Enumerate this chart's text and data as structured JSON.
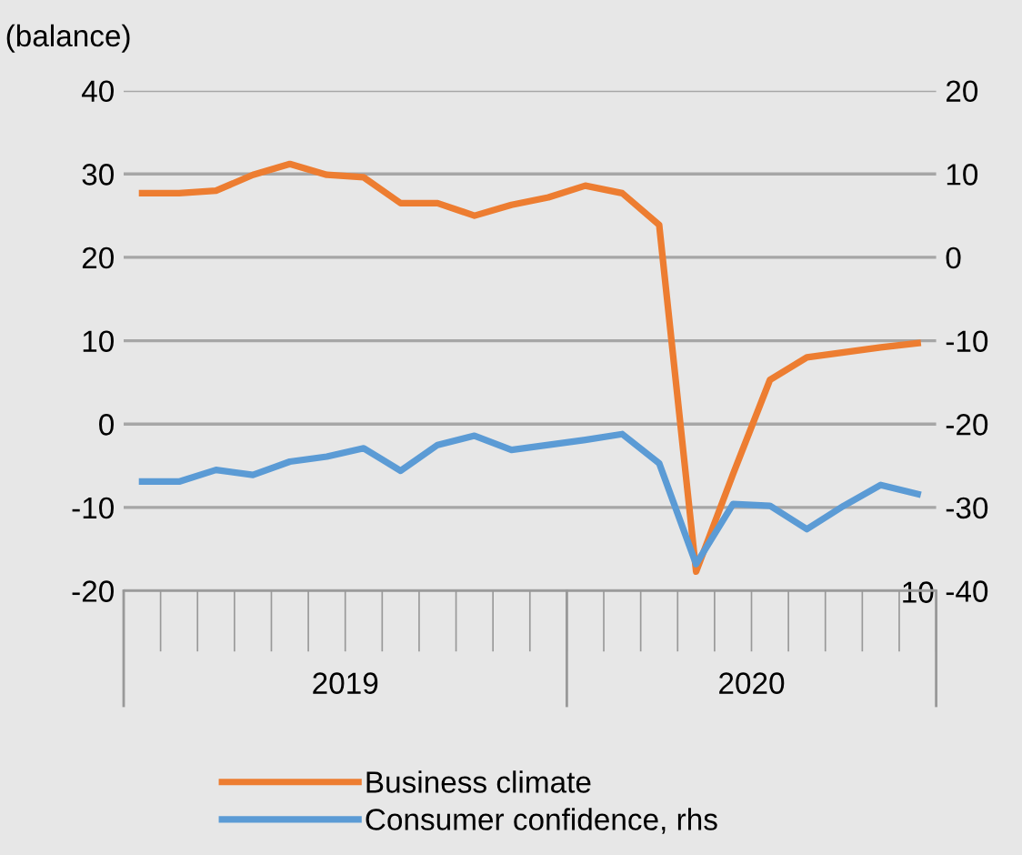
{
  "chart_data": {
    "type": "line",
    "ylabel": "(balance)",
    "categories": [
      null,
      null,
      null,
      null,
      null,
      null,
      null,
      null,
      null,
      null,
      null,
      null,
      null,
      null,
      null,
      null,
      null,
      null,
      null,
      null,
      null,
      "10"
    ],
    "series": [
      {
        "name": "Business climate",
        "color": "#ed7d31",
        "values": [
          27.7,
          27.7,
          28.0,
          29.9,
          31.2,
          29.9,
          29.6,
          26.5,
          26.5,
          25.0,
          26.3,
          27.2,
          28.6,
          27.7,
          23.9,
          -17.7,
          -6.0,
          5.3,
          8.0,
          8.6,
          9.2,
          9.7
        ]
      },
      {
        "name": "Consumer confidence, rhs",
        "color": "#5b9bd5",
        "axis": "y2",
        "values": [
          -26.9,
          -26.9,
          -25.5,
          -26.1,
          -24.5,
          -23.9,
          -22.9,
          -25.6,
          -22.5,
          -21.4,
          -23.1,
          -22.5,
          -21.9,
          -21.2,
          -24.7,
          -36.8,
          -29.6,
          -29.8,
          -32.6,
          -29.8,
          -27.3,
          -28.4
        ]
      }
    ],
    "annotations": [
      "2019",
      "2020"
    ],
    "ylim": [
      -20,
      40
    ],
    "yticks": [
      -20,
      -10,
      0,
      10,
      20,
      30,
      40
    ],
    "y2lim": [
      -40,
      20
    ],
    "y2ticks": [
      -40,
      -30,
      -20,
      -10,
      0,
      10,
      20
    ],
    "grid": "y",
    "legend": "bottom",
    "line_style": "solid"
  }
}
